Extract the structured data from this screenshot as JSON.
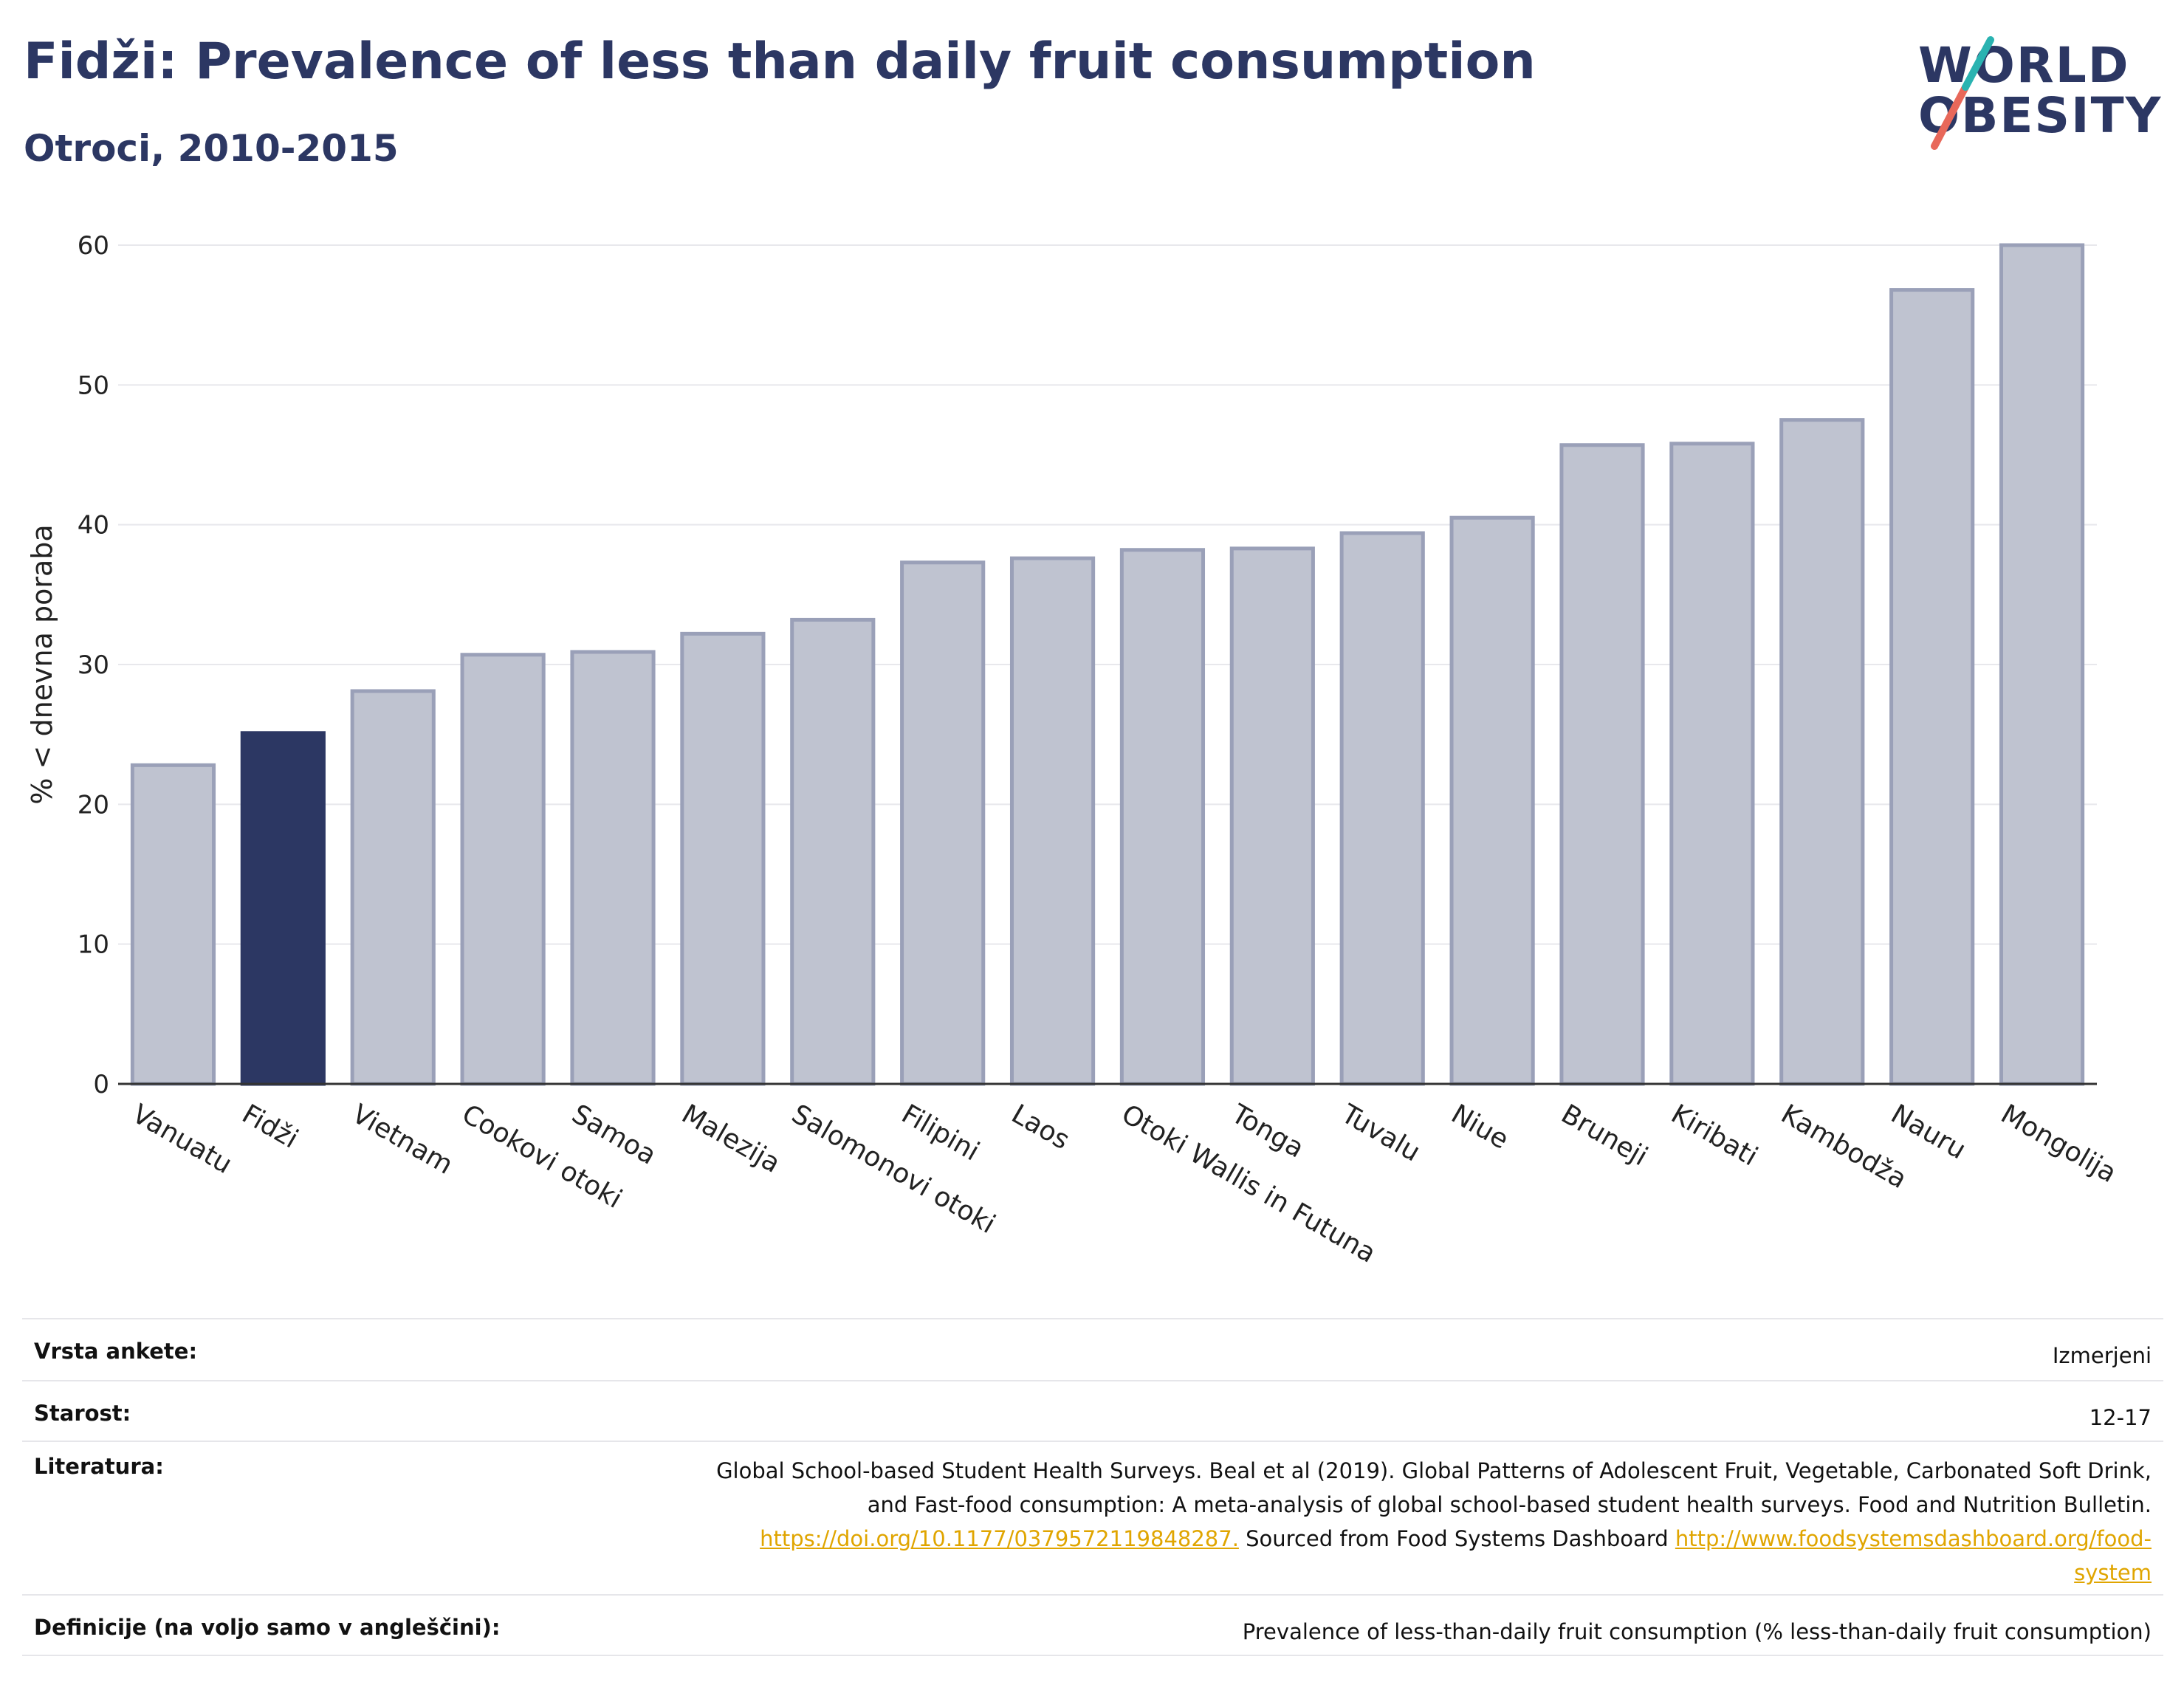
{
  "header": {
    "title": "Fidži: Prevalence of less than daily fruit consumption",
    "subtitle": "Otroci, 2010-2015"
  },
  "logo": {
    "line1": "WORLD",
    "line2": "OBESITY"
  },
  "colors": {
    "highlight": "#2c3763",
    "bar": "#bfc3d0",
    "bar_edge": "#9aa0b8",
    "accent_teal": "#2ab3b1",
    "accent_red": "#e8685a",
    "link": "#e0a500"
  },
  "chart_data": {
    "type": "bar",
    "ylabel": "% < dnevna poraba",
    "ylim": [
      0,
      60
    ],
    "yticks": [
      0,
      10,
      20,
      30,
      40,
      50,
      60
    ],
    "grid": true,
    "highlight": "Fidži",
    "categories": [
      "Vanuatu",
      "Fidži",
      "Vietnam",
      "Cookovi otoki",
      "Samoa",
      "Malezija",
      "Salomonovi otoki",
      "Filipini",
      "Laos",
      "Otoki Wallis in Futuna",
      "Tonga",
      "Tuvalu",
      "Niue",
      "Bruneji",
      "Kiribati",
      "Kambodža",
      "Nauru",
      "Mongolija"
    ],
    "values": [
      22.8,
      25.1,
      28.1,
      30.7,
      30.9,
      32.2,
      33.2,
      37.3,
      37.6,
      38.2,
      38.3,
      39.4,
      40.5,
      45.7,
      45.8,
      47.5,
      56.8,
      60.0
    ]
  },
  "info": {
    "survey_label": "Vrsta ankete:",
    "survey_value": "Izmerjeni",
    "age_label": "Starost:",
    "age_value": "12-17",
    "ref_label": "Literatura:",
    "ref_text_1": "Global School-based Student Health Surveys. Beal et al (2019). Global Patterns of Adolescent Fruit, Vegetable, Carbonated Soft Drink,",
    "ref_text_2": "and Fast-food consumption: A meta-analysis of global school-based student health surveys. Food and Nutrition Bulletin.",
    "ref_link_1": "https://doi.org/10.1177/0379572119848287.",
    "ref_text_3": " Sourced from Food Systems Dashboard ",
    "ref_link_2a": "http://www.foodsystemsdashboard.org/food-",
    "ref_link_2b": "system",
    "def_label": "Definicije (na voljo samo v angleščini):",
    "def_value": "Prevalence of less-than-daily fruit consumption (% less-than-daily fruit consumption)"
  }
}
